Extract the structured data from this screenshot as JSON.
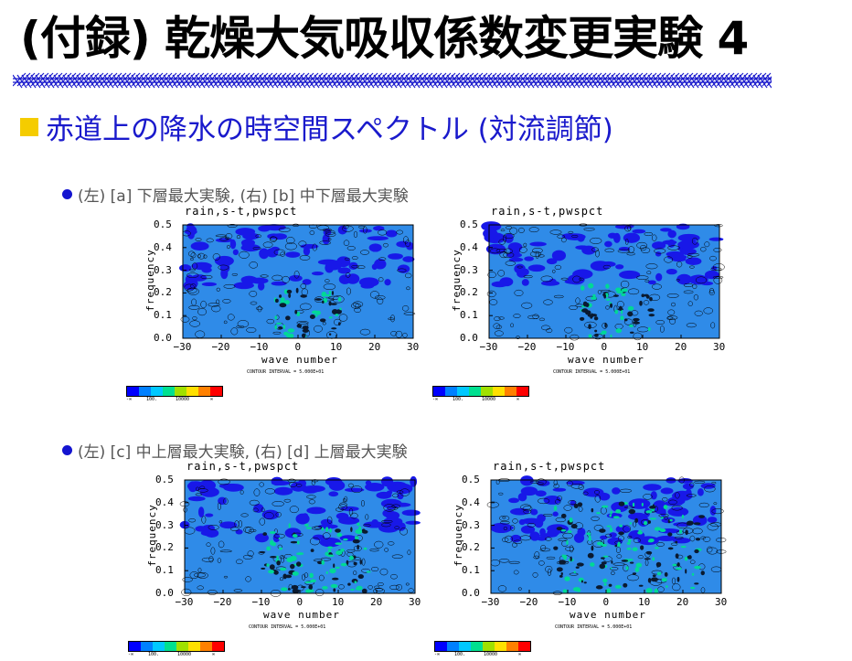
{
  "slide": {
    "title": "(付録) 乾燥大気吸収係数変更実験 4",
    "subtitle": "赤道上の降水の時空間スペクトル (対流調節)",
    "accent": "#1a1acc",
    "bullet_color": "#f5cc00"
  },
  "rows": [
    {
      "caption": "(左) [a] 下層最大実験, (右) [b] 中下層最大実験"
    },
    {
      "caption": "(左) [c] 中上層最大実験, (右) [d] 上層最大実験"
    }
  ],
  "panel_common": {
    "title": "rain,s-t,pwspct",
    "xlabel": "wave number",
    "ylabel": "frequency",
    "xticks": [
      "−30",
      "−20",
      "−10",
      "0",
      "10",
      "20",
      "30"
    ],
    "yticks": [
      "0.0",
      "0.1",
      "0.2",
      "0.3",
      "0.4",
      "0.5"
    ],
    "contour_note": "CONTOUR INTERVAL = 5.000E+01",
    "colorbar_labels": [
      "-∞",
      "100.",
      "10000",
      "∞"
    ],
    "colorbar_colors": [
      "#0000ff",
      "#0080ff",
      "#00c8ff",
      "#00e090",
      "#a0e000",
      "#ffe000",
      "#ff8000",
      "#ff0000"
    ]
  },
  "chart_data": [
    {
      "type": "heatmap",
      "id": "a",
      "title": "rain,s-t,pwspct",
      "xlabel": "wave number",
      "ylabel": "frequency",
      "xlim": [
        -30,
        30
      ],
      "ylim": [
        0,
        0.5
      ]
    },
    {
      "type": "heatmap",
      "id": "b",
      "title": "rain,s-t,pwspct",
      "xlabel": "wave number",
      "ylabel": "frequency",
      "xlim": [
        -30,
        30
      ],
      "ylim": [
        0,
        0.5
      ]
    },
    {
      "type": "heatmap",
      "id": "c",
      "title": "rain,s-t,pwspct",
      "xlabel": "wave number",
      "ylabel": "frequency",
      "xlim": [
        -30,
        30
      ],
      "ylim": [
        0,
        0.5
      ]
    },
    {
      "type": "heatmap",
      "id": "d",
      "title": "rain,s-t,pwspct",
      "xlabel": "wave number",
      "ylabel": "frequency",
      "xlim": [
        -30,
        30
      ],
      "ylim": [
        0,
        0.5
      ]
    }
  ]
}
